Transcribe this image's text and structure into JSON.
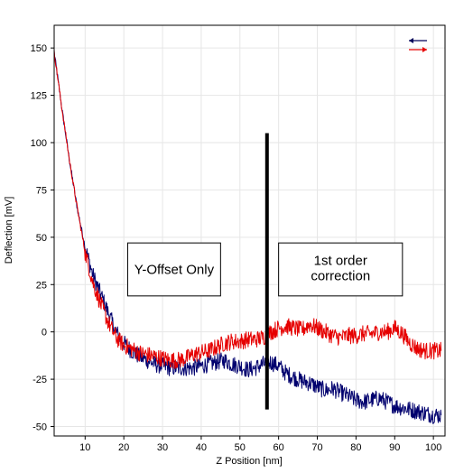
{
  "chart_data": {
    "type": "line",
    "xlabel": "Z Position [nm]",
    "ylabel": "Deflection [mV]",
    "xlim": [
      2,
      103
    ],
    "ylim": [
      -55,
      162
    ],
    "x_ticks": [
      10,
      20,
      30,
      40,
      50,
      60,
      70,
      80,
      90,
      100
    ],
    "y_ticks": [
      -50,
      -25,
      0,
      25,
      50,
      75,
      100,
      125,
      150
    ],
    "grid": true,
    "legend": {
      "position": "top-right",
      "entries": [
        {
          "symbol": "arrow-left",
          "color": "#00005a"
        },
        {
          "symbol": "arrow-right",
          "color": "#e60000"
        }
      ]
    },
    "series": [
      {
        "color": "#00006e",
        "x": [
          2,
          4,
          6,
          8,
          10,
          12,
          14,
          16,
          18,
          20,
          22,
          24,
          26,
          28,
          30,
          32,
          34,
          36,
          38,
          40,
          42,
          44,
          46,
          48,
          50,
          52,
          54,
          56,
          58,
          60,
          62,
          64,
          66,
          68,
          70,
          72,
          74,
          76,
          78,
          80,
          82,
          84,
          86,
          88,
          90,
          92,
          94,
          96,
          98,
          100,
          102
        ],
        "y": [
          148,
          118,
          90,
          65,
          45,
          30,
          20,
          10,
          0,
          -6,
          -10,
          -13,
          -15,
          -17,
          -18,
          -19,
          -19,
          -19,
          -19,
          -18,
          -17,
          -16,
          -15,
          -17,
          -18,
          -20,
          -19,
          -17,
          -16,
          -18,
          -22,
          -24,
          -26,
          -27,
          -29,
          -31,
          -30,
          -32,
          -34,
          -36,
          -37,
          -36,
          -35,
          -37,
          -39,
          -40,
          -41,
          -42,
          -43,
          -44,
          -44
        ]
      },
      {
        "color": "#e60000",
        "x": [
          2,
          4,
          6,
          8,
          10,
          12,
          14,
          16,
          18,
          20,
          22,
          24,
          26,
          28,
          30,
          32,
          34,
          36,
          38,
          40,
          42,
          44,
          46,
          48,
          50,
          52,
          54,
          56,
          58,
          60,
          62,
          64,
          66,
          68,
          70,
          72,
          74,
          76,
          78,
          80,
          82,
          84,
          86,
          88,
          90,
          92,
          94,
          96,
          98,
          100,
          102
        ],
        "y": [
          148,
          118,
          90,
          65,
          42,
          26,
          15,
          5,
          -3,
          -7,
          -9,
          -11,
          -12,
          -13,
          -14,
          -15,
          -15,
          -14,
          -12,
          -11,
          -10,
          -8,
          -6,
          -5,
          -5,
          -4,
          -4,
          -3,
          0,
          2,
          3,
          2,
          1,
          4,
          2,
          0,
          -2,
          -3,
          -2,
          -2,
          -1,
          -1,
          0,
          0,
          2,
          -1,
          -6,
          -9,
          -10,
          -10,
          -10
        ]
      }
    ],
    "divider": {
      "x": 57,
      "y_top": 105,
      "y_bottom": -41
    },
    "annotations": [
      {
        "text": "Y-Offset Only",
        "x1": 21,
        "x2": 45,
        "y1": 19,
        "y2": 47
      },
      {
        "lines": [
          "1st order",
          "correction"
        ],
        "x1": 60,
        "x2": 92,
        "y1": 19,
        "y2": 47
      }
    ]
  }
}
